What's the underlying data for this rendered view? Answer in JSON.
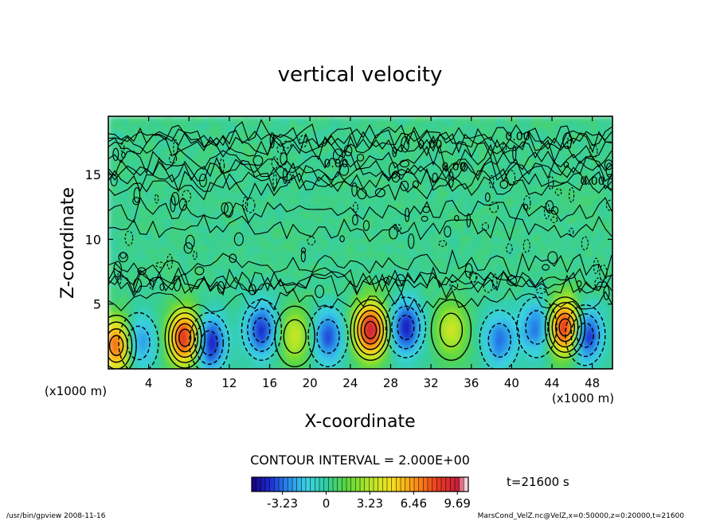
{
  "chart_data": {
    "type": "heatmap",
    "title": "vertical velocity",
    "xlabel": "X-coordinate",
    "ylabel": "Z-coordinate",
    "x_unit": "(x1000 m)",
    "y_unit": "(x1000 m)",
    "xlim": [
      0,
      50
    ],
    "ylim": [
      0,
      19.5
    ],
    "x_ticks": [
      "4",
      "8",
      "12",
      "16",
      "20",
      "24",
      "28",
      "32",
      "36",
      "40",
      "44",
      "48"
    ],
    "x_tick_values": [
      4,
      8,
      12,
      16,
      20,
      24,
      28,
      32,
      36,
      40,
      44,
      48
    ],
    "y_ticks": [
      "5",
      "10",
      "15"
    ],
    "y_tick_values": [
      5,
      10,
      15
    ],
    "contour_interval": "CONTOUR INTERVAL = 2.000E+00",
    "contour_labels": [
      "0.00",
      "0.00",
      "0.00",
      "0.00",
      "0.00"
    ],
    "colorbar_ticks": [
      "-3.23",
      "0",
      "3.23",
      "6.46",
      "9.69"
    ],
    "colorbar_values": [
      -3.23,
      0,
      3.23,
      6.46,
      9.69
    ],
    "colorbar_range": [
      -5.5,
      10.5
    ],
    "time_label": "t=21600 s",
    "features": [
      {
        "x": 0.8,
        "z": 1.8,
        "w": 7.5
      },
      {
        "x": 3.0,
        "z": 2.0,
        "w": -3.5
      },
      {
        "x": 7.6,
        "z": 2.4,
        "w": 9.0
      },
      {
        "x": 10.0,
        "z": 2.0,
        "w": -5.5
      },
      {
        "x": 15.2,
        "z": 3.0,
        "w": -4.5
      },
      {
        "x": 18.5,
        "z": 2.5,
        "w": 3.5
      },
      {
        "x": 21.8,
        "z": 2.5,
        "w": -4.0
      },
      {
        "x": 26.0,
        "z": 3.0,
        "w": 9.5
      },
      {
        "x": 29.5,
        "z": 3.2,
        "w": -5.0
      },
      {
        "x": 34.0,
        "z": 3.0,
        "w": 3.5
      },
      {
        "x": 38.8,
        "z": 2.2,
        "w": -3.5
      },
      {
        "x": 42.5,
        "z": 3.2,
        "w": -3.8
      },
      {
        "x": 45.3,
        "z": 3.2,
        "w": 9.5
      },
      {
        "x": 47.3,
        "z": 2.6,
        "w": -5.5
      }
    ]
  },
  "footer": {
    "left": "/usr/bin/gpview   2008-11-16",
    "right": "MarsCond_VelZ.nc@VelZ,x=0:50000,z=0:20000,t=21600"
  },
  "colors": {
    "background": "#ffffff",
    "contour": "#000000"
  }
}
